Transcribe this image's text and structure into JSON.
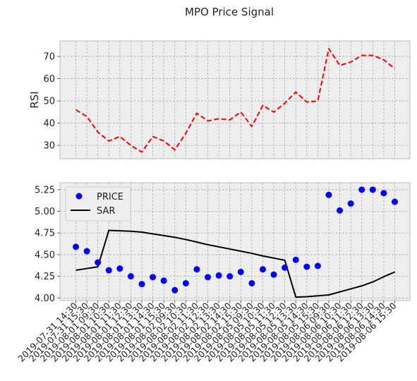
{
  "title": "MPO Price Signal",
  "chart_data": [
    {
      "type": "line",
      "ylabel": "RSI",
      "ylim": [
        24,
        77
      ],
      "yticks": [
        30,
        40,
        50,
        60,
        70
      ],
      "grid": true,
      "series": [
        {
          "name": "",
          "color": "#ff0000",
          "style": "dashed",
          "values": [
            46,
            43,
            36,
            32,
            34,
            30,
            27,
            34,
            32,
            28,
            35.5,
            44.5,
            41,
            42,
            41.5,
            45,
            38.5,
            48,
            45,
            49,
            54,
            49.5,
            50,
            73.5,
            66,
            67.5,
            70.5,
            70.5,
            68.5,
            64.5
          ]
        }
      ]
    },
    {
      "type": "scatter",
      "ylim": [
        3.97,
        5.33
      ],
      "yticks": [
        "4.00",
        "4.25",
        "4.50",
        "4.75",
        "5.00",
        "5.25"
      ],
      "grid": true,
      "legend_position": "top-left",
      "x": [
        "2019-07-31 14:30",
        "2019-07-31 15:30",
        "2019-08-01 09:30",
        "2019-08-01 10:30",
        "2019-08-01 11:30",
        "2019-08-01 12:30",
        "2019-08-01 13:30",
        "2019-08-01 14:30",
        "2019-08-01 15:30",
        "2019-08-02 09:30",
        "2019-08-02 10:30",
        "2019-08-02 11:30",
        "2019-08-02 12:30",
        "2019-08-02 13:30",
        "2019-08-02 14:30",
        "2019-08-02 15:30",
        "2019-08-05 09:30",
        "2019-08-05 10:30",
        "2019-08-05 11:30",
        "2019-08-05 12:30",
        "2019-08-05 13:30",
        "2019-08-05 14:30",
        "2019-08-05 15:30",
        "2019-08-06 09:30",
        "2019-08-06 10:30",
        "2019-08-06 11:30",
        "2019-08-06 12:30",
        "2019-08-06 13:30",
        "2019-08-06 14:30",
        "2019-08-06 15:30"
      ],
      "series": [
        {
          "name": "PRICE",
          "color": "#0000ff",
          "marker": "circle",
          "values": [
            4.59,
            4.54,
            4.41,
            4.32,
            4.34,
            4.25,
            4.16,
            4.24,
            4.2,
            4.09,
            4.17,
            4.33,
            4.24,
            4.26,
            4.25,
            4.3,
            4.17,
            4.33,
            4.27,
            4.35,
            4.44,
            4.36,
            4.37,
            5.19,
            5.01,
            5.09,
            5.25,
            5.25,
            5.21,
            5.11
          ]
        },
        {
          "name": "SAR",
          "color": "#000000",
          "style": "solid",
          "values": [
            4.32,
            4.34,
            4.36,
            4.78,
            4.775,
            4.77,
            4.76,
            4.74,
            4.72,
            4.7,
            4.675,
            4.645,
            4.615,
            4.59,
            4.565,
            4.54,
            4.515,
            4.485,
            4.46,
            4.435,
            4.01,
            4.015,
            4.025,
            4.035,
            4.07,
            4.105,
            4.14,
            4.185,
            4.245,
            4.3
          ]
        }
      ]
    }
  ]
}
